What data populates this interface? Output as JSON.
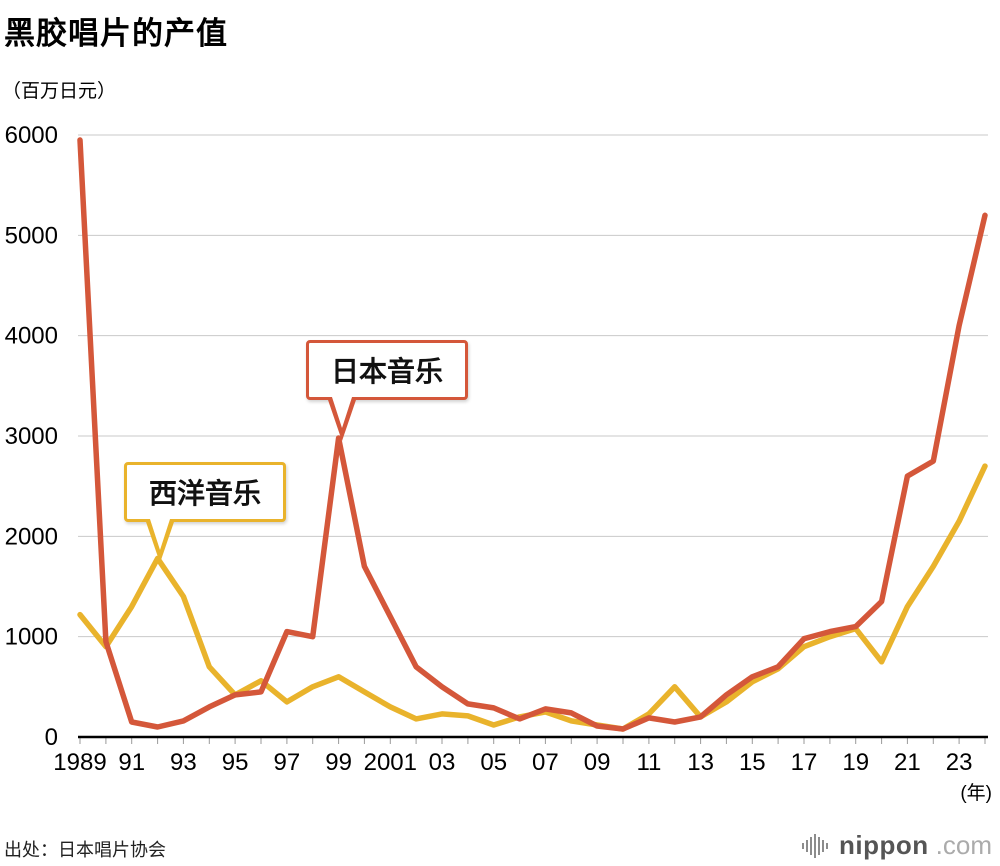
{
  "title": "黑胶唱片的产值",
  "source": "出处：日本唱片协会",
  "logo": {
    "name": "nippon",
    "suffix": ".com"
  },
  "annotations": [
    {
      "label": "日本音乐",
      "series": "日本音乐",
      "anchor_year": 1999,
      "anchor_value": 2980
    },
    {
      "label": "西洋音乐",
      "series": "西洋音乐",
      "anchor_year": 1992,
      "anchor_value": 1780
    }
  ],
  "chart_data": {
    "type": "line",
    "title": "黑胶唱片的产值",
    "ylabel": "（百万日元）",
    "xlabel": "(年)",
    "ylim": [
      0,
      6000
    ],
    "ytick_step": 1000,
    "grid": true,
    "legend": "callout-labels",
    "x": [
      1989,
      1990,
      1991,
      1992,
      1993,
      1994,
      1995,
      1996,
      1997,
      1998,
      1999,
      2000,
      2001,
      2002,
      2003,
      2004,
      2005,
      2006,
      2007,
      2008,
      2009,
      2010,
      2011,
      2012,
      2013,
      2014,
      2015,
      2016,
      2017,
      2018,
      2019,
      2020,
      2021,
      2022,
      2023,
      2024
    ],
    "xtick_labels": [
      "1989",
      "91",
      "93",
      "95",
      "97",
      "99",
      "2001",
      "03",
      "05",
      "07",
      "09",
      "11",
      "13",
      "15",
      "17",
      "19",
      "21",
      "23"
    ],
    "series": [
      {
        "id": "japan-music",
        "name": "日本音乐",
        "color": "#d4573a",
        "values": [
          5950,
          950,
          150,
          100,
          160,
          300,
          420,
          450,
          1050,
          1000,
          2980,
          1700,
          1200,
          700,
          500,
          330,
          290,
          180,
          280,
          240,
          110,
          80,
          190,
          150,
          200,
          420,
          600,
          700,
          980,
          1050,
          1100,
          1350,
          2600,
          2750,
          4100,
          5200
        ]
      },
      {
        "id": "western-music",
        "name": "西洋音乐",
        "color": "#e9b32c",
        "values": [
          1220,
          900,
          1300,
          1780,
          1400,
          700,
          420,
          560,
          350,
          500,
          600,
          450,
          300,
          180,
          230,
          210,
          120,
          200,
          250,
          160,
          120,
          80,
          230,
          500,
          200,
          350,
          550,
          680,
          900,
          1000,
          1080,
          750,
          1300,
          1700,
          2150,
          2700
        ]
      }
    ]
  }
}
